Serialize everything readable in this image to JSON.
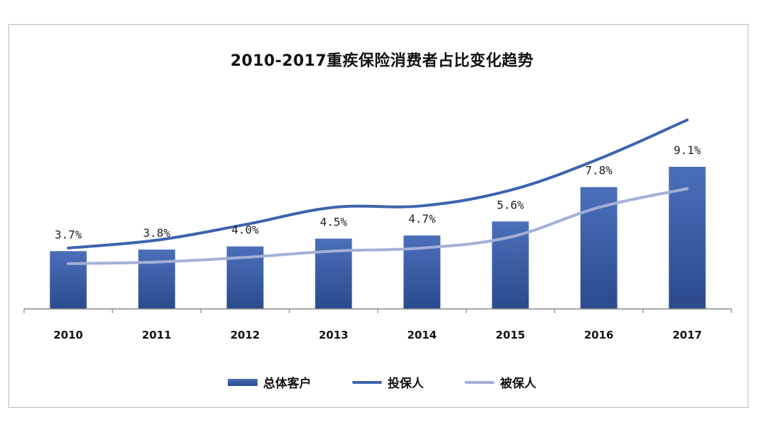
{
  "chart_data": {
    "type": "bar",
    "title": "2010-2017重疾保险消费者占比变化趋势",
    "categories": [
      "2010",
      "2011",
      "2012",
      "2013",
      "2014",
      "2015",
      "2016",
      "2017"
    ],
    "series": [
      {
        "name": "总体客户",
        "kind": "bar",
        "values": [
          3.7,
          3.8,
          4.0,
          4.5,
          4.7,
          5.6,
          7.8,
          9.1
        ],
        "labels": [
          "3.7%",
          "3.8%",
          "4.0%",
          "4.5%",
          "4.7%",
          "5.6%",
          "7.8%",
          "9.1%"
        ],
        "color": "#3a5ea8"
      },
      {
        "name": "投保人",
        "kind": "line",
        "values": [
          3.9,
          4.4,
          5.4,
          6.5,
          6.6,
          7.6,
          9.6,
          12.1
        ],
        "color": "#3c63ad"
      },
      {
        "name": "被保人",
        "kind": "line",
        "values": [
          2.9,
          3.0,
          3.3,
          3.7,
          3.9,
          4.6,
          6.5,
          7.7
        ],
        "color": "#a3b0d6"
      }
    ],
    "ylim": [
      0,
      12.9
    ],
    "grid": false,
    "legend_position": "bottom"
  }
}
